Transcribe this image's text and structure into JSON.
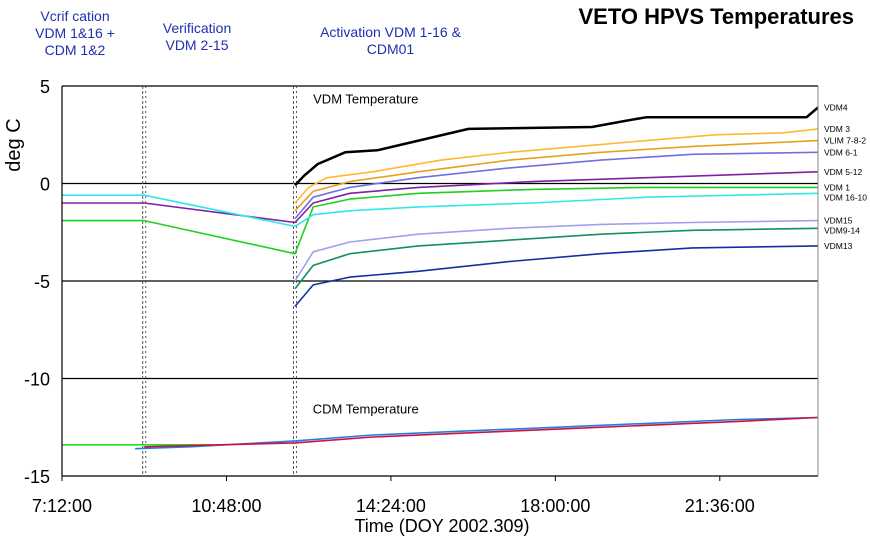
{
  "chart_data": {
    "type": "line",
    "title": "VETO HPVS Temperatures",
    "xlabel": "Time (DOY 2002.309)",
    "ylabel": "deg C",
    "x_unit": "time of day (h)",
    "xlim": [
      7.2,
      23.75
    ],
    "ylim": [
      -15,
      5
    ],
    "grid": "horizontal",
    "xticks": [
      {
        "value": 7.2,
        "label": "7:12:00"
      },
      {
        "value": 10.8,
        "label": "10:48:00"
      },
      {
        "value": 14.4,
        "label": "14:24:00"
      },
      {
        "value": 18.0,
        "label": "18:00:00"
      },
      {
        "value": 21.6,
        "label": "21:36:00"
      }
    ],
    "yticks": [
      {
        "value": 5,
        "label": "5"
      },
      {
        "value": 0,
        "label": "0"
      },
      {
        "value": -5,
        "label": "-5"
      },
      {
        "value": -10,
        "label": "-10"
      },
      {
        "value": -15,
        "label": "-15"
      }
    ],
    "phase_markers": [
      9.0,
      12.3
    ],
    "phase_annotations": [
      "Vcrif cation\nVDM 1&16 +\nCDM 1&2",
      "Verification\nVDM 2-15",
      "Activation VDM 1-16 &\nCDM01"
    ],
    "plot_labels": [
      "VDM Temperature",
      "CDM Temperature"
    ],
    "series": [
      {
        "name": "VDM4",
        "color": "#000000",
        "x": [
          12.3,
          12.5,
          12.8,
          13.1,
          13.4,
          14.1,
          16.1,
          18.8,
          19.5,
          20.0,
          23.5,
          23.75
        ],
        "y": [
          -0.1,
          0.4,
          1.0,
          1.3,
          1.6,
          1.7,
          2.8,
          2.9,
          3.2,
          3.4,
          3.4,
          3.9
        ]
      },
      {
        "name": "VDM 3",
        "color": "#ffb830",
        "x": [
          12.3,
          12.6,
          13.0,
          14.0,
          15.5,
          17.0,
          18.5,
          20.0,
          21.5,
          23.0,
          23.75
        ],
        "y": [
          -1.0,
          -0.2,
          0.3,
          0.6,
          1.2,
          1.6,
          1.9,
          2.2,
          2.5,
          2.6,
          2.8
        ]
      },
      {
        "name": "VLIM 7-8-2",
        "color": "#e8a020",
        "x": [
          12.3,
          12.7,
          13.5,
          15.0,
          17.0,
          19.0,
          21.0,
          23.75
        ],
        "y": [
          -1.4,
          -0.4,
          0.1,
          0.6,
          1.2,
          1.6,
          1.9,
          2.2
        ]
      },
      {
        "name": "VDM 6-1",
        "color": "#7070e0",
        "x": [
          12.3,
          12.7,
          13.5,
          15.0,
          17.0,
          19.0,
          21.0,
          23.75
        ],
        "y": [
          -1.8,
          -0.7,
          -0.2,
          0.3,
          0.8,
          1.2,
          1.5,
          1.6
        ]
      },
      {
        "name": "VDM 5-12",
        "color": "#8020a0",
        "x": [
          7.2,
          9.0,
          12.3,
          12.7,
          13.5,
          15.0,
          17.5,
          20.0,
          23.75
        ],
        "y": [
          -1.0,
          -1.0,
          -2.0,
          -1.0,
          -0.5,
          -0.2,
          0.1,
          0.3,
          0.6
        ]
      },
      {
        "name": "VDM 1",
        "color": "#20d020",
        "x": [
          7.2,
          9.0,
          12.3,
          12.7,
          13.5,
          15.0,
          17.5,
          20.0,
          23.75
        ],
        "y": [
          -1.9,
          -1.9,
          -3.6,
          -1.2,
          -0.8,
          -0.5,
          -0.3,
          -0.2,
          -0.2
        ]
      },
      {
        "name": "VDM 16-10",
        "color": "#30e8e8",
        "x": [
          7.2,
          9.0,
          12.3,
          12.7,
          13.5,
          15.0,
          17.5,
          20.0,
          23.75
        ],
        "y": [
          -0.6,
          -0.6,
          -2.2,
          -1.6,
          -1.4,
          -1.2,
          -1.0,
          -0.7,
          -0.5
        ]
      },
      {
        "name": "VDM15",
        "color": "#a0a0f0",
        "x": [
          12.3,
          12.7,
          13.5,
          15.0,
          17.0,
          19.0,
          21.0,
          23.75
        ],
        "y": [
          -5.0,
          -3.5,
          -3.0,
          -2.6,
          -2.3,
          -2.1,
          -2.0,
          -1.9
        ]
      },
      {
        "name": "VDM9-14",
        "color": "#109060",
        "x": [
          12.3,
          12.7,
          13.5,
          15.0,
          17.0,
          19.0,
          21.0,
          23.75
        ],
        "y": [
          -5.4,
          -4.2,
          -3.6,
          -3.2,
          -2.9,
          -2.6,
          -2.4,
          -2.3
        ]
      },
      {
        "name": "VDM13",
        "color": "#1030a0",
        "x": [
          12.3,
          12.7,
          13.5,
          15.0,
          17.0,
          19.0,
          21.0,
          23.75
        ],
        "y": [
          -6.3,
          -5.2,
          -4.8,
          -4.5,
          -4.0,
          -3.6,
          -3.3,
          -3.2
        ]
      },
      {
        "name": "",
        "color": "#20e020",
        "x": [
          7.2,
          9.0,
          10.5
        ],
        "y": [
          -13.4,
          -13.4,
          -13.4
        ]
      },
      {
        "name": "",
        "color": "#2080e0",
        "x": [
          8.8,
          10.0,
          12.3,
          14.0,
          16.0,
          18.0,
          20.0,
          22.0,
          23.75
        ],
        "y": [
          -13.6,
          -13.5,
          -13.2,
          -12.9,
          -12.7,
          -12.5,
          -12.3,
          -12.1,
          -12.0
        ]
      },
      {
        "name": "",
        "color": "#d01040",
        "x": [
          9.0,
          12.3,
          14.0,
          16.0,
          18.0,
          20.0,
          22.0,
          23.75
        ],
        "y": [
          -13.5,
          -13.3,
          -13.0,
          -12.8,
          -12.6,
          -12.4,
          -12.2,
          -12.0
        ]
      }
    ]
  }
}
